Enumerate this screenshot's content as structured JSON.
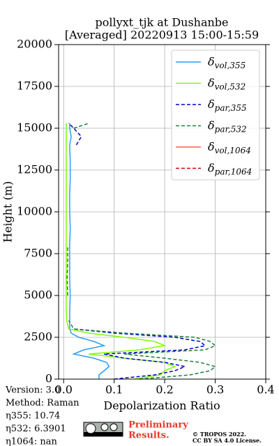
{
  "chart_data": {
    "type": "line",
    "title": [
      "pollyxt_tjk at Dushanbe",
      "[Averaged] 20220913 15:00-15:59"
    ],
    "xlabel": "Depolarization Ratio",
    "ylabel": "Height (m)",
    "xlim": [
      -0.01,
      0.4
    ],
    "xticks": [
      {
        "value": 0,
        "label": "0.0"
      },
      0.1,
      0.2,
      0.3,
      0.4
    ],
    "ylim": [
      0,
      20000
    ],
    "yticks": [
      0,
      2500,
      5000,
      7500,
      10000,
      12500,
      15000,
      17500,
      20000
    ],
    "grid": true,
    "legend": "upper right",
    "y": [
      0,
      250,
      500,
      750,
      1000,
      1250,
      1500,
      1750,
      2000,
      2250,
      2500,
      2750,
      3000,
      3500,
      4000,
      5000,
      6000,
      7000,
      8000,
      9000,
      10000,
      11000,
      12000,
      13000,
      14000,
      14500,
      15000,
      15300
    ],
    "series": [
      {
        "name": "δvol,355",
        "color": "#2a9df4",
        "linestyle": "solid",
        "values": [
          0.07,
          0.07,
          0.08,
          0.09,
          0.085,
          0.06,
          0.02,
          0.04,
          0.08,
          0.06,
          0.03,
          0.015,
          0.012,
          0.012,
          0.012,
          0.013,
          0.012,
          0.012,
          0.012,
          0.013,
          0.012,
          0.012,
          0.013,
          0.013,
          0.012,
          0.015,
          0.012,
          0.012
        ]
      },
      {
        "name": "δvol,532",
        "color": "#7fff00",
        "linestyle": "solid",
        "values": [
          0.14,
          0.19,
          0.2,
          0.22,
          0.2,
          0.12,
          0.05,
          0.15,
          0.2,
          0.18,
          0.12,
          0.05,
          0.01,
          0.006,
          0.005,
          0.005,
          0.005,
          0.005,
          0.005,
          0.005,
          0.005,
          0.005,
          0.005,
          0.005,
          0.005,
          0.005,
          0.005,
          0.005
        ]
      },
      {
        "name": "δpar,355",
        "color": "#0000cc",
        "linestyle": "dashed",
        "values": [
          0.1,
          0.18,
          0.22,
          0.24,
          0.2,
          0.12,
          0.08,
          0.24,
          0.28,
          0.27,
          0.22,
          0.1,
          0.02,
          null,
          null,
          null,
          null,
          null,
          null,
          null,
          null,
          null,
          null,
          null,
          0.025,
          0.035,
          0.02,
          0.01
        ]
      },
      {
        "name": "δpar,532",
        "color": "#1a7f3c",
        "linestyle": "dashed",
        "values": [
          0.15,
          0.25,
          0.29,
          0.3,
          0.27,
          0.2,
          0.12,
          0.28,
          0.3,
          0.29,
          0.26,
          0.12,
          0.02,
          0.01,
          null,
          0.008,
          0.007,
          0.008,
          0.008,
          null,
          null,
          null,
          null,
          null,
          null,
          null,
          0.02,
          0.05
        ]
      },
      {
        "name": "δvol,1064",
        "color": "#ff6347",
        "linestyle": "solid",
        "values": [
          null,
          null,
          null,
          null,
          null,
          null,
          null,
          null,
          null,
          null,
          null,
          null,
          null,
          null,
          null,
          null,
          null,
          null,
          null,
          null,
          null,
          null,
          null,
          null,
          null,
          null,
          null,
          null
        ]
      },
      {
        "name": "δpar,1064",
        "color": "#cc0000",
        "linestyle": "dashed",
        "values": [
          null,
          null,
          null,
          null,
          null,
          null,
          null,
          null,
          null,
          null,
          null,
          null,
          null,
          null,
          null,
          null,
          null,
          null,
          null,
          null,
          null,
          null,
          null,
          null,
          null,
          null,
          null,
          null
        ]
      }
    ],
    "info": [
      "Version: 3.0",
      "Method: Raman",
      "η355:  10.74",
      "η532: 6.3901",
      "η1064:    nan"
    ],
    "preliminary": [
      "Preliminary",
      "Results."
    ],
    "license": [
      "© TROPOS 2022.",
      "CC BY SA 4.0 License."
    ]
  }
}
